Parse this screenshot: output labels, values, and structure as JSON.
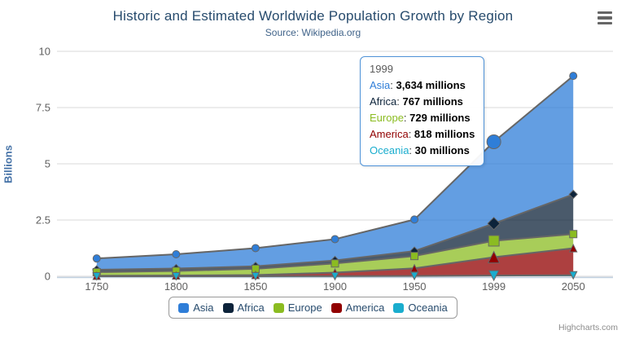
{
  "title": "Historic and Estimated Worldwide Population Growth by Region",
  "subtitle": "Source: Wikipedia.org",
  "credits": "Highcharts.com",
  "yaxis": {
    "title": "Billions",
    "ticks": [
      "0",
      "2.5",
      "5",
      "7.5",
      "10"
    ]
  },
  "chart_data": {
    "type": "area",
    "stacking": "normal",
    "title": "Historic and Estimated Worldwide Population Growth by Region",
    "subtitle": "Source: Wikipedia.org",
    "xlabel": "",
    "ylabel": "Billions",
    "ylim": [
      0,
      10
    ],
    "grid": "horizontal",
    "legend_position": "bottom",
    "categories": [
      "1750",
      "1800",
      "1850",
      "1900",
      "1950",
      "1999",
      "2050"
    ],
    "values_unit": "millions",
    "hover_category": "1999",
    "series": [
      {
        "name": "Asia",
        "color": "#2f7ed8",
        "marker": "circle",
        "values": [
          502,
          635,
          809,
          947,
          1402,
          3634,
          5268
        ]
      },
      {
        "name": "Africa",
        "color": "#0d233a",
        "marker": "diamond",
        "values": [
          106,
          107,
          111,
          133,
          221,
          767,
          1766
        ]
      },
      {
        "name": "Europe",
        "color": "#8bbc21",
        "marker": "square",
        "values": [
          163,
          203,
          276,
          408,
          547,
          729,
          628
        ]
      },
      {
        "name": "America",
        "color": "#910000",
        "marker": "triangle",
        "values": [
          18,
          31,
          54,
          156,
          339,
          818,
          1201
        ]
      },
      {
        "name": "Oceania",
        "color": "#1aadce",
        "marker": "triangle-down",
        "values": [
          2,
          2,
          2,
          6,
          13,
          30,
          46
        ]
      }
    ]
  },
  "tooltip": {
    "header": "1999",
    "rows": [
      {
        "name": "Asia",
        "color": "#2f7ed8",
        "value": "3,634 millions"
      },
      {
        "name": "Africa",
        "color": "#0d233a",
        "value": "767 millions"
      },
      {
        "name": "Europe",
        "color": "#8bbc21",
        "value": "729 millions"
      },
      {
        "name": "America",
        "color": "#910000",
        "value": "818 millions"
      },
      {
        "name": "Oceania",
        "color": "#1aadce",
        "value": "30 millions"
      }
    ]
  },
  "legend": {
    "items": [
      {
        "label": "Asia",
        "color": "#2f7ed8"
      },
      {
        "label": "Africa",
        "color": "#0d233a"
      },
      {
        "label": "Europe",
        "color": "#8bbc21"
      },
      {
        "label": "America",
        "color": "#910000"
      },
      {
        "label": "Oceania",
        "color": "#1aadce"
      }
    ]
  }
}
